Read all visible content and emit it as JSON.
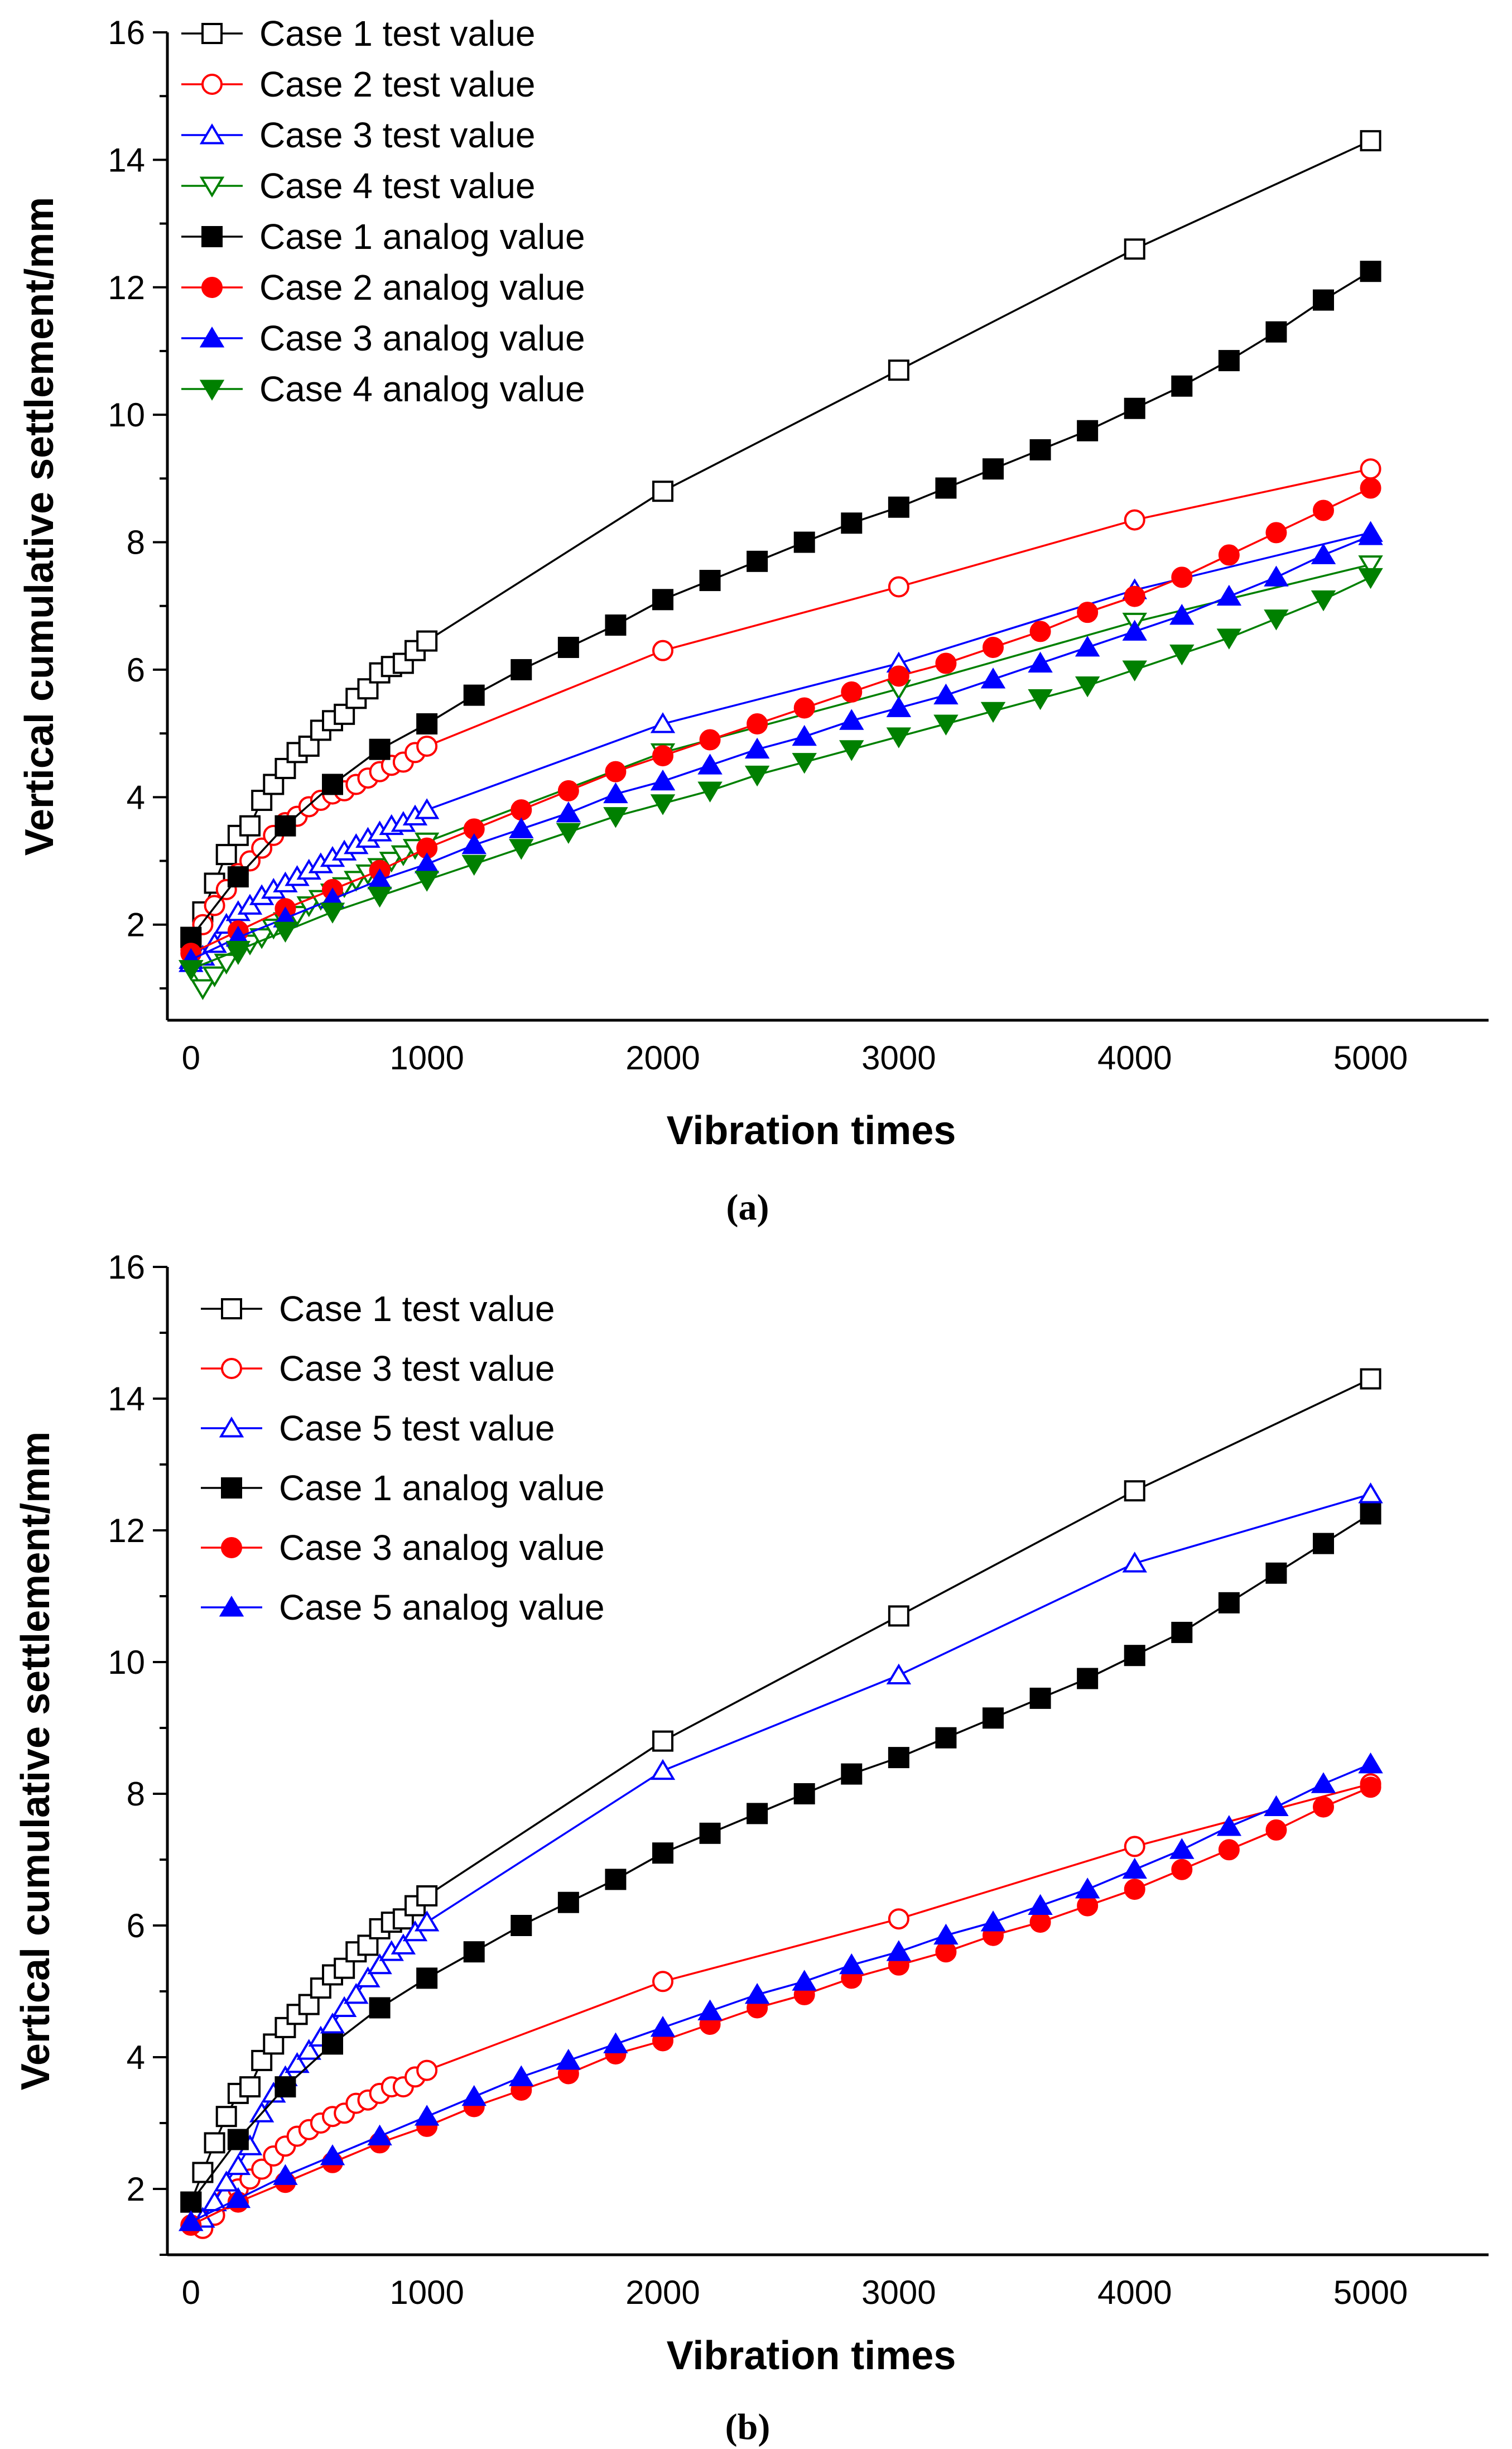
{
  "chart_data": [
    {
      "type": "line",
      "panel": "a",
      "caption": "(a)",
      "xlabel": "Vibration times",
      "ylabel": "Vertical cumulative settlement/mm",
      "xlim": [
        -100,
        5500
      ],
      "ylim": [
        0.5,
        16
      ],
      "xticks": [
        0,
        1000,
        2000,
        3000,
        4000,
        5000
      ],
      "yticks": [
        2,
        4,
        6,
        8,
        10,
        12,
        14,
        16
      ],
      "legend_position": "top-left",
      "series": [
        {
          "name": "Case 1 test value",
          "color": "#000000",
          "marker": "square",
          "filled": false,
          "x": [
            0,
            50,
            100,
            150,
            200,
            250,
            300,
            350,
            400,
            450,
            500,
            550,
            600,
            650,
            700,
            750,
            800,
            850,
            900,
            950,
            1000,
            2000,
            3000,
            4000,
            5000
          ],
          "y": [
            1.8,
            2.2,
            2.65,
            3.1,
            3.4,
            3.55,
            3.95,
            4.2,
            4.45,
            4.7,
            4.8,
            5.05,
            5.2,
            5.3,
            5.55,
            5.7,
            5.95,
            6.05,
            6.1,
            6.3,
            6.45,
            8.8,
            10.7,
            12.6,
            14.3
          ]
        },
        {
          "name": "Case 2 test value",
          "color": "#ff0000",
          "marker": "circle",
          "filled": false,
          "x": [
            0,
            50,
            100,
            150,
            200,
            250,
            300,
            350,
            400,
            450,
            500,
            550,
            600,
            650,
            700,
            750,
            800,
            850,
            900,
            950,
            1000,
            2000,
            3000,
            4000,
            5000
          ],
          "y": [
            1.6,
            2.0,
            2.3,
            2.55,
            2.8,
            3.0,
            3.2,
            3.4,
            3.6,
            3.7,
            3.85,
            3.95,
            4.05,
            4.1,
            4.2,
            4.3,
            4.4,
            4.5,
            4.55,
            4.7,
            4.8,
            6.3,
            7.3,
            8.35,
            9.15
          ]
        },
        {
          "name": "Case 3 test value",
          "color": "#0000ff",
          "marker": "triangle-up",
          "filled": false,
          "x": [
            0,
            50,
            100,
            150,
            200,
            250,
            300,
            350,
            400,
            450,
            500,
            550,
            600,
            650,
            700,
            750,
            800,
            850,
            900,
            950,
            1000,
            2000,
            3000,
            4000,
            5000
          ],
          "y": [
            1.4,
            1.5,
            1.7,
            2.0,
            2.2,
            2.3,
            2.45,
            2.55,
            2.65,
            2.75,
            2.85,
            2.95,
            3.05,
            3.15,
            3.25,
            3.35,
            3.45,
            3.55,
            3.6,
            3.7,
            3.8,
            5.15,
            6.1,
            7.25,
            8.15
          ]
        },
        {
          "name": "Case 4 test value",
          "color": "#008000",
          "marker": "triangle-down",
          "filled": false,
          "x": [
            0,
            50,
            100,
            150,
            200,
            250,
            300,
            350,
            400,
            450,
            500,
            550,
            600,
            650,
            700,
            750,
            800,
            850,
            900,
            950,
            1000,
            2000,
            3000,
            4000,
            5000
          ],
          "y": [
            1.3,
            1.0,
            1.2,
            1.4,
            1.55,
            1.7,
            1.8,
            1.95,
            2.05,
            2.15,
            2.3,
            2.4,
            2.5,
            2.6,
            2.7,
            2.8,
            2.9,
            3.0,
            3.1,
            3.2,
            3.3,
            4.7,
            5.7,
            6.75,
            7.65
          ]
        },
        {
          "name": "Case 1 analog value",
          "color": "#000000",
          "marker": "square",
          "filled": true,
          "x": [
            0,
            200,
            400,
            600,
            800,
            1000,
            1200,
            1400,
            1600,
            1800,
            2000,
            2200,
            2400,
            2600,
            2800,
            3000,
            3200,
            3400,
            3600,
            3800,
            4000,
            4200,
            4400,
            4600,
            4800,
            5000
          ],
          "y": [
            1.8,
            2.75,
            3.55,
            4.2,
            4.75,
            5.15,
            5.6,
            6.0,
            6.35,
            6.7,
            7.1,
            7.4,
            7.7,
            8.0,
            8.3,
            8.55,
            8.85,
            9.15,
            9.45,
            9.75,
            10.1,
            10.45,
            10.85,
            11.3,
            11.8,
            12.25
          ]
        },
        {
          "name": "Case 2 analog value",
          "color": "#ff0000",
          "marker": "circle",
          "filled": true,
          "x": [
            0,
            200,
            400,
            600,
            800,
            1000,
            1200,
            1400,
            1600,
            1800,
            2000,
            2200,
            2400,
            2600,
            2800,
            3000,
            3200,
            3400,
            3600,
            3800,
            4000,
            4200,
            4400,
            4600,
            4800,
            5000
          ],
          "y": [
            1.55,
            1.9,
            2.25,
            2.55,
            2.85,
            3.2,
            3.5,
            3.8,
            4.1,
            4.4,
            4.65,
            4.9,
            5.15,
            5.4,
            5.65,
            5.9,
            6.1,
            6.35,
            6.6,
            6.9,
            7.15,
            7.45,
            7.8,
            8.15,
            8.5,
            8.85
          ]
        },
        {
          "name": "Case 3 analog value",
          "color": "#0000ff",
          "marker": "triangle-up",
          "filled": true,
          "x": [
            0,
            200,
            400,
            600,
            800,
            1000,
            1200,
            1400,
            1600,
            1800,
            2000,
            2200,
            2400,
            2600,
            2800,
            3000,
            3200,
            3400,
            3600,
            3800,
            4000,
            4200,
            4400,
            4600,
            4800,
            5000
          ],
          "y": [
            1.45,
            1.8,
            2.1,
            2.4,
            2.7,
            2.95,
            3.25,
            3.5,
            3.75,
            4.05,
            4.25,
            4.5,
            4.75,
            4.95,
            5.2,
            5.4,
            5.6,
            5.85,
            6.1,
            6.35,
            6.6,
            6.85,
            7.15,
            7.45,
            7.8,
            8.1
          ]
        },
        {
          "name": "Case 4 analog value",
          "color": "#008000",
          "marker": "triangle-down",
          "filled": true,
          "x": [
            0,
            200,
            400,
            600,
            800,
            1000,
            1200,
            1400,
            1600,
            1800,
            2000,
            2200,
            2400,
            2600,
            2800,
            3000,
            3200,
            3400,
            3600,
            3800,
            4000,
            4200,
            4400,
            4600,
            4800,
            5000
          ],
          "y": [
            1.3,
            1.6,
            1.9,
            2.2,
            2.45,
            2.7,
            2.95,
            3.2,
            3.45,
            3.7,
            3.9,
            4.1,
            4.35,
            4.55,
            4.75,
            4.95,
            5.15,
            5.35,
            5.55,
            5.75,
            6.0,
            6.25,
            6.5,
            6.8,
            7.1,
            7.45
          ]
        }
      ]
    },
    {
      "type": "line",
      "panel": "b",
      "caption": "(b)",
      "xlabel": "Vibration times",
      "ylabel": "Vertical cumulative settlement/mm",
      "xlim": [
        -100,
        5500
      ],
      "ylim": [
        1,
        16
      ],
      "xticks": [
        0,
        1000,
        2000,
        3000,
        4000,
        5000
      ],
      "yticks": [
        2,
        4,
        6,
        8,
        10,
        12,
        14,
        16
      ],
      "legend_position": "top-left",
      "series": [
        {
          "name": "Case 1 test value",
          "color": "#000000",
          "marker": "square",
          "filled": false,
          "x": [
            0,
            50,
            100,
            150,
            200,
            250,
            300,
            350,
            400,
            450,
            500,
            550,
            600,
            650,
            700,
            750,
            800,
            850,
            900,
            950,
            1000,
            2000,
            3000,
            4000,
            5000
          ],
          "y": [
            1.8,
            2.25,
            2.7,
            3.1,
            3.45,
            3.55,
            3.95,
            4.2,
            4.45,
            4.65,
            4.8,
            5.05,
            5.25,
            5.35,
            5.6,
            5.7,
            5.95,
            6.05,
            6.1,
            6.3,
            6.45,
            8.8,
            10.7,
            12.6,
            14.3
          ]
        },
        {
          "name": "Case 3 test value",
          "color": "#ff0000",
          "marker": "circle",
          "filled": false,
          "x": [
            0,
            50,
            100,
            150,
            200,
            250,
            300,
            350,
            400,
            450,
            500,
            550,
            600,
            650,
            700,
            750,
            800,
            850,
            900,
            950,
            1000,
            2000,
            3000,
            4000,
            5000
          ],
          "y": [
            1.45,
            1.4,
            1.6,
            1.85,
            2.0,
            2.15,
            2.3,
            2.5,
            2.65,
            2.8,
            2.9,
            3.0,
            3.1,
            3.15,
            3.3,
            3.35,
            3.45,
            3.55,
            3.55,
            3.7,
            3.8,
            5.15,
            6.1,
            7.2,
            8.15
          ]
        },
        {
          "name": "Case 5 test value",
          "color": "#0000ff",
          "marker": "triangle-up",
          "filled": false,
          "x": [
            0,
            50,
            100,
            150,
            200,
            250,
            300,
            350,
            400,
            450,
            500,
            550,
            600,
            650,
            700,
            750,
            800,
            850,
            900,
            950,
            1000,
            2000,
            3000,
            4000,
            5000
          ],
          "y": [
            1.5,
            1.55,
            1.8,
            2.1,
            2.35,
            2.65,
            3.15,
            3.45,
            3.7,
            3.9,
            4.1,
            4.3,
            4.5,
            4.75,
            4.95,
            5.2,
            5.4,
            5.6,
            5.7,
            5.9,
            6.05,
            8.35,
            9.8,
            11.5,
            12.55
          ]
        },
        {
          "name": "Case 1 analog value",
          "color": "#000000",
          "marker": "square",
          "filled": true,
          "x": [
            0,
            200,
            400,
            600,
            800,
            1000,
            1200,
            1400,
            1600,
            1800,
            2000,
            2200,
            2400,
            2600,
            2800,
            3000,
            3200,
            3400,
            3600,
            3800,
            4000,
            4200,
            4400,
            4600,
            4800,
            5000
          ],
          "y": [
            1.8,
            2.75,
            3.55,
            4.2,
            4.75,
            5.2,
            5.6,
            6.0,
            6.35,
            6.7,
            7.1,
            7.4,
            7.7,
            8.0,
            8.3,
            8.55,
            8.85,
            9.15,
            9.45,
            9.75,
            10.1,
            10.45,
            10.9,
            11.35,
            11.8,
            12.25
          ]
        },
        {
          "name": "Case 3 analog value",
          "color": "#ff0000",
          "marker": "circle",
          "filled": true,
          "x": [
            0,
            200,
            400,
            600,
            800,
            1000,
            1200,
            1400,
            1600,
            1800,
            2000,
            2200,
            2400,
            2600,
            2800,
            3000,
            3200,
            3400,
            3600,
            3800,
            4000,
            4200,
            4400,
            4600,
            4800,
            5000
          ],
          "y": [
            1.45,
            1.8,
            2.1,
            2.4,
            2.7,
            2.95,
            3.25,
            3.5,
            3.75,
            4.05,
            4.25,
            4.5,
            4.75,
            4.95,
            5.2,
            5.4,
            5.6,
            5.85,
            6.05,
            6.3,
            6.55,
            6.85,
            7.15,
            7.45,
            7.8,
            8.1
          ]
        },
        {
          "name": "Case 5 analog value",
          "color": "#0000ff",
          "marker": "triangle-up",
          "filled": true,
          "x": [
            0,
            200,
            400,
            600,
            800,
            1000,
            1200,
            1400,
            1600,
            1800,
            2000,
            2200,
            2400,
            2600,
            2800,
            3000,
            3200,
            3400,
            3600,
            3800,
            4000,
            4200,
            4400,
            4600,
            4800,
            5000
          ],
          "y": [
            1.5,
            1.85,
            2.2,
            2.5,
            2.8,
            3.1,
            3.4,
            3.7,
            3.95,
            4.2,
            4.45,
            4.7,
            4.95,
            5.15,
            5.4,
            5.6,
            5.85,
            6.05,
            6.3,
            6.55,
            6.85,
            7.15,
            7.5,
            7.8,
            8.15,
            8.45
          ]
        }
      ]
    }
  ]
}
